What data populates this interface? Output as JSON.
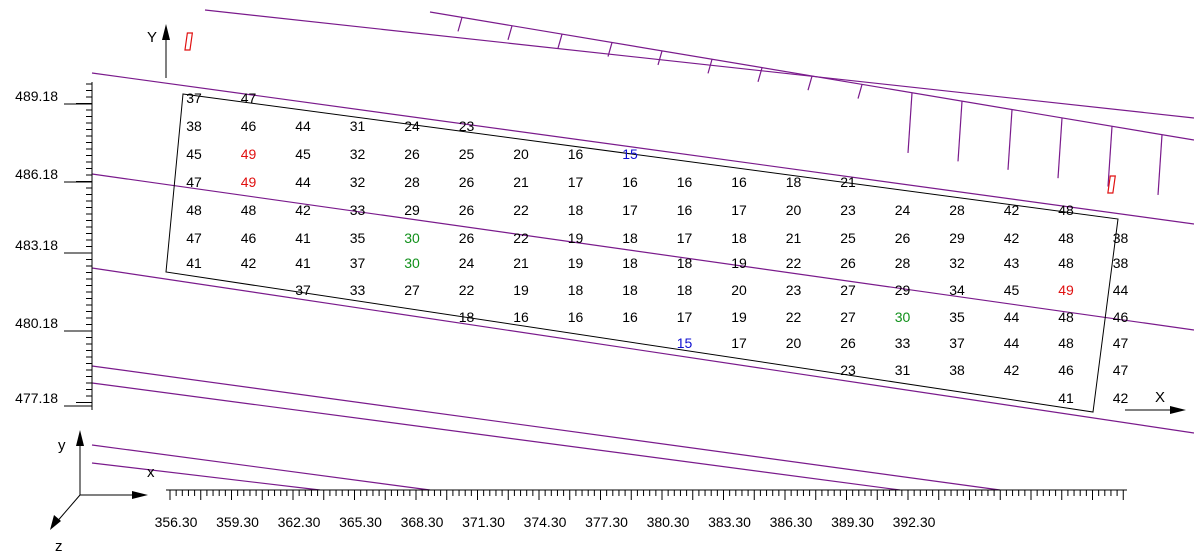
{
  "colors": {
    "contour": "#7a1a8c",
    "outline": "#000000",
    "value_default": "#000000",
    "value_max": "#e01010",
    "value_min": "#1010d0",
    "value_mid": "#10901a",
    "marker": "#e01010",
    "axis": "#000000"
  },
  "axes": {
    "x_label": "X",
    "y_label": "Y",
    "y_ticks": [
      "489.18",
      "486.18",
      "483.18",
      "480.18",
      "477.18"
    ],
    "x_ticks": [
      "356.30",
      "359.30",
      "362.30",
      "365.30",
      "368.30",
      "371.30",
      "374.30",
      "377.30",
      "380.30",
      "383.30",
      "386.30",
      "389.30",
      "392.30"
    ]
  },
  "triad": {
    "x": "x",
    "y": "y",
    "z": "z"
  },
  "grid_rows": [
    [
      "37",
      "47"
    ],
    [
      "38",
      "46",
      "44",
      "31",
      "24",
      "23"
    ],
    [
      "45",
      "49",
      "45",
      "32",
      "26",
      "25",
      "20",
      "16",
      "15"
    ],
    [
      "47",
      "49",
      "44",
      "32",
      "28",
      "26",
      "21",
      "17",
      "16",
      "16",
      "16",
      "18",
      "21"
    ],
    [
      "48",
      "48",
      "42",
      "33",
      "29",
      "26",
      "22",
      "18",
      "17",
      "16",
      "17",
      "20",
      "23",
      "24",
      "28",
      "42",
      "48"
    ],
    [
      "47",
      "46",
      "41",
      "35",
      "30",
      "26",
      "22",
      "19",
      "18",
      "17",
      "18",
      "21",
      "25",
      "26",
      "29",
      "42",
      "48",
      "38"
    ],
    [
      "41",
      "42",
      "41",
      "37",
      "30",
      "24",
      "21",
      "19",
      "18",
      "18",
      "19",
      "22",
      "26",
      "28",
      "32",
      "43",
      "48",
      "38"
    ],
    [
      "",
      "",
      "37",
      "33",
      "27",
      "22",
      "19",
      "18",
      "18",
      "18",
      "20",
      "23",
      "27",
      "29",
      "34",
      "45",
      "49",
      "44"
    ],
    [
      "",
      "",
      "",
      "",
      "",
      "18",
      "16",
      "16",
      "16",
      "17",
      "19",
      "22",
      "27",
      "30",
      "35",
      "44",
      "48",
      "46"
    ],
    [
      "",
      "",
      "",
      "",
      "",
      "",
      "",
      "",
      "15",
      "17",
      "20",
      "26",
      "33",
      "37",
      "44",
      "48",
      "47"
    ],
    [
      "",
      "",
      "",
      "",
      "",
      "",
      "",
      "",
      "",
      "",
      "",
      "23",
      "31",
      "38",
      "42",
      "46",
      "47"
    ],
    [
      "",
      "",
      "",
      "",
      "",
      "",
      "",
      "",
      "",
      "",
      "",
      "",
      "",
      "",
      "",
      "41",
      "42"
    ]
  ],
  "grid_col_offset": [
    0,
    0,
    0,
    0,
    0,
    0,
    0,
    0,
    0,
    1,
    1,
    1
  ]
}
